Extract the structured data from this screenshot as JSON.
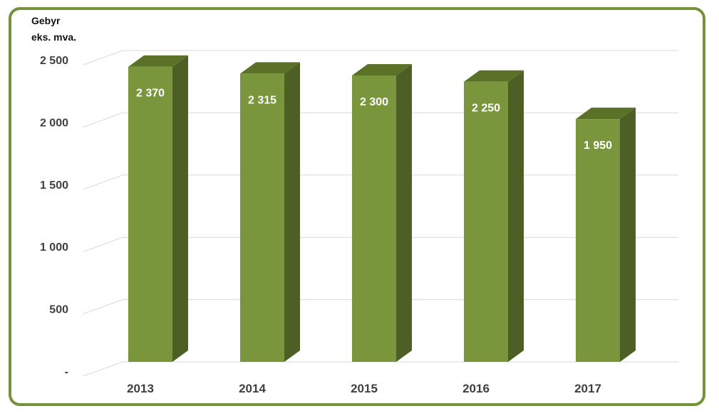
{
  "colors": {
    "frame": "#76923c",
    "bar_front": "#7a963c",
    "bar_side": "#4d5f24",
    "bar_top": "#5b7127",
    "grid": "#d9d9d9",
    "label": "#ffffff",
    "axis_text": "#404040"
  },
  "chart_data": {
    "type": "bar",
    "ylabel": [
      "Gebyr",
      "eks. mva."
    ],
    "categories": [
      "2013",
      "2014",
      "2015",
      "2016",
      "2017"
    ],
    "values": [
      2370,
      2315,
      2300,
      2250,
      1950
    ],
    "data_labels": [
      "2 370",
      "2 315",
      "2 300",
      "2 250",
      "1 950"
    ],
    "yticks": [
      0,
      500,
      1000,
      1500,
      2000,
      2500
    ],
    "ytick_labels": [
      "-",
      "500",
      "1 000",
      "1 500",
      "2 000",
      "2 500"
    ],
    "ylim": [
      0,
      2500
    ],
    "grid": true,
    "legend": "none",
    "style": "3d-column"
  }
}
